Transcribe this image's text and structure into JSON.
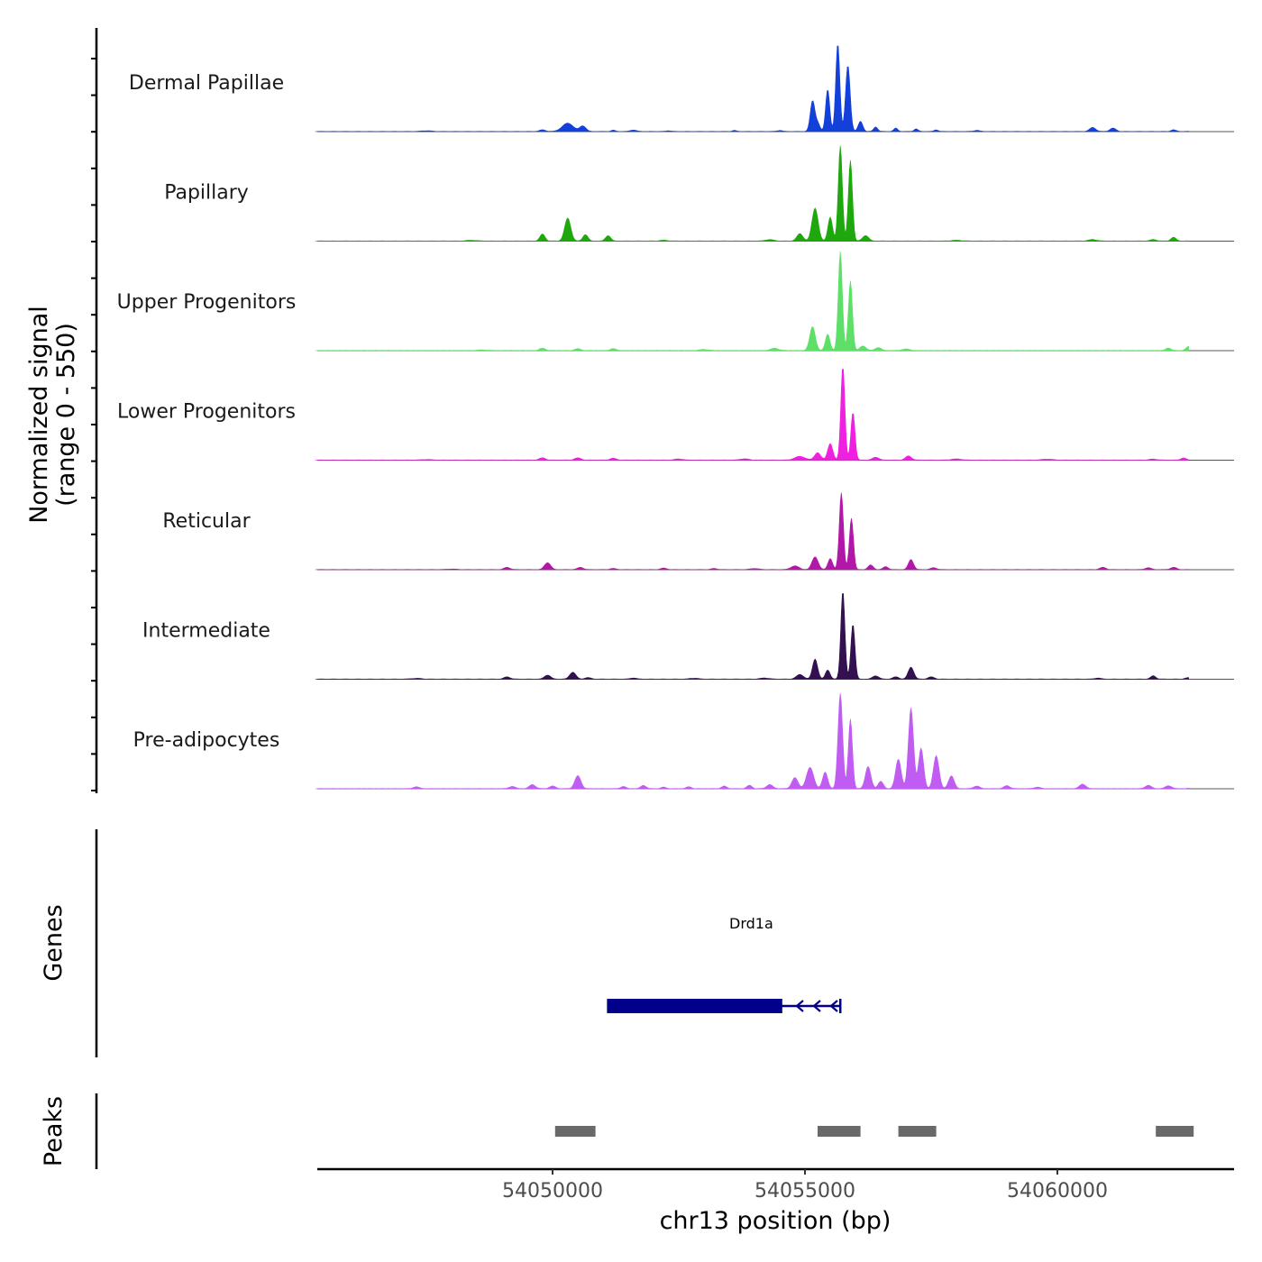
{
  "chart_data": {
    "type": "area",
    "title": "",
    "ylabel_line1": "Normalized signal",
    "ylabel_line2": "(range 0 - 550)",
    "y_range": [
      0,
      550
    ],
    "xlabel": "chr13 position (bp)",
    "xlim": [
      54045300,
      54063600
    ],
    "xticks": [
      54050000,
      54055000,
      54060000
    ],
    "xtick_labels": [
      "54050000",
      "54055000",
      "54060000"
    ],
    "genes_label": "Genes",
    "peaks_label": "Peaks",
    "series": [
      {
        "name": "Dermal Papillae",
        "color": "#1240d8",
        "peaks": [
          [
            54047500,
            4,
            100
          ],
          [
            54049800,
            9,
            60
          ],
          [
            54050300,
            45,
            110
          ],
          [
            54050600,
            30,
            60
          ],
          [
            54051200,
            7,
            40
          ],
          [
            54051600,
            8,
            60
          ],
          [
            54052300,
            4,
            50
          ],
          [
            54053600,
            6,
            40
          ],
          [
            54054500,
            6,
            50
          ],
          [
            54055150,
            165,
            45
          ],
          [
            54055250,
            45,
            45
          ],
          [
            54055450,
            230,
            40
          ],
          [
            54055650,
            480,
            40
          ],
          [
            54055850,
            360,
            45
          ],
          [
            54056100,
            55,
            45
          ],
          [
            54056400,
            25,
            40
          ],
          [
            54056800,
            18,
            40
          ],
          [
            54057200,
            14,
            40
          ],
          [
            54057600,
            9,
            40
          ],
          [
            54058400,
            6,
            60
          ],
          [
            54060700,
            22,
            60
          ],
          [
            54061100,
            18,
            60
          ],
          [
            54062300,
            9,
            50
          ],
          [
            54062700,
            5,
            50
          ]
        ]
      },
      {
        "name": "Papillary",
        "color": "#1fa80e",
        "peaks": [
          [
            54048400,
            4,
            100
          ],
          [
            54049800,
            38,
            50
          ],
          [
            54050300,
            125,
            60
          ],
          [
            54050650,
            35,
            50
          ],
          [
            54051100,
            30,
            50
          ],
          [
            54052200,
            4,
            80
          ],
          [
            54054300,
            8,
            80
          ],
          [
            54054900,
            40,
            60
          ],
          [
            54055200,
            180,
            60
          ],
          [
            54055500,
            130,
            45
          ],
          [
            54055700,
            520,
            40
          ],
          [
            54055900,
            440,
            40
          ],
          [
            54056200,
            30,
            60
          ],
          [
            54058000,
            4,
            100
          ],
          [
            54060700,
            8,
            80
          ],
          [
            54061900,
            8,
            60
          ],
          [
            54062300,
            20,
            50
          ]
        ]
      },
      {
        "name": "Upper Progenitors",
        "color": "#5ee068",
        "peaks": [
          [
            54048600,
            3,
            100
          ],
          [
            54049800,
            12,
            60
          ],
          [
            54050500,
            10,
            60
          ],
          [
            54051200,
            10,
            60
          ],
          [
            54053000,
            6,
            80
          ],
          [
            54054400,
            12,
            80
          ],
          [
            54055150,
            130,
            55
          ],
          [
            54055450,
            90,
            45
          ],
          [
            54055700,
            540,
            40
          ],
          [
            54055900,
            380,
            40
          ],
          [
            54056150,
            25,
            60
          ],
          [
            54056450,
            16,
            60
          ],
          [
            54057000,
            8,
            80
          ],
          [
            54062200,
            14,
            50
          ],
          [
            54062600,
            22,
            50
          ]
        ]
      },
      {
        "name": "Lower Progenitors",
        "color": "#f020e0",
        "peaks": [
          [
            54047500,
            3,
            100
          ],
          [
            54049800,
            12,
            60
          ],
          [
            54050500,
            12,
            60
          ],
          [
            54051200,
            10,
            60
          ],
          [
            54052500,
            6,
            80
          ],
          [
            54053800,
            7,
            80
          ],
          [
            54054900,
            20,
            100
          ],
          [
            54055250,
            40,
            60
          ],
          [
            54055500,
            90,
            50
          ],
          [
            54055750,
            510,
            40
          ],
          [
            54055950,
            260,
            40
          ],
          [
            54056400,
            16,
            60
          ],
          [
            54057050,
            22,
            60
          ],
          [
            54058000,
            6,
            100
          ],
          [
            54059800,
            5,
            100
          ],
          [
            54061900,
            5,
            80
          ],
          [
            54062500,
            12,
            50
          ]
        ]
      },
      {
        "name": "Reticular",
        "color": "#b218a8",
        "peaks": [
          [
            54048000,
            3,
            100
          ],
          [
            54049100,
            12,
            60
          ],
          [
            54049900,
            38,
            60
          ],
          [
            54050550,
            12,
            60
          ],
          [
            54051200,
            6,
            60
          ],
          [
            54052200,
            8,
            60
          ],
          [
            54053200,
            6,
            60
          ],
          [
            54054000,
            6,
            80
          ],
          [
            54054800,
            20,
            80
          ],
          [
            54055200,
            70,
            60
          ],
          [
            54055500,
            60,
            45
          ],
          [
            54055720,
            420,
            40
          ],
          [
            54055920,
            280,
            40
          ],
          [
            54056300,
            25,
            50
          ],
          [
            54056600,
            16,
            50
          ],
          [
            54057100,
            55,
            50
          ],
          [
            54057550,
            10,
            60
          ],
          [
            54060900,
            12,
            60
          ],
          [
            54061800,
            10,
            60
          ],
          [
            54062300,
            12,
            60
          ]
        ]
      },
      {
        "name": "Intermediate",
        "color": "#33104f",
        "peaks": [
          [
            54047300,
            4,
            100
          ],
          [
            54049100,
            12,
            60
          ],
          [
            54049900,
            22,
            60
          ],
          [
            54050400,
            38,
            60
          ],
          [
            54050700,
            8,
            60
          ],
          [
            54051600,
            6,
            60
          ],
          [
            54052800,
            5,
            80
          ],
          [
            54054200,
            6,
            80
          ],
          [
            54054900,
            25,
            70
          ],
          [
            54055200,
            110,
            50
          ],
          [
            54055450,
            50,
            45
          ],
          [
            54055750,
            480,
            40
          ],
          [
            54055950,
            300,
            40
          ],
          [
            54056400,
            18,
            60
          ],
          [
            54056800,
            12,
            60
          ],
          [
            54057100,
            65,
            55
          ],
          [
            54057500,
            12,
            60
          ],
          [
            54060800,
            6,
            60
          ],
          [
            54061900,
            18,
            50
          ],
          [
            54062600,
            8,
            60
          ]
        ]
      },
      {
        "name": "Pre-adipocytes",
        "color": "#c15cf2",
        "peaks": [
          [
            54047300,
            10,
            60
          ],
          [
            54049200,
            12,
            60
          ],
          [
            54049600,
            22,
            60
          ],
          [
            54050000,
            14,
            60
          ],
          [
            54050500,
            70,
            60
          ],
          [
            54051400,
            12,
            50
          ],
          [
            54051800,
            18,
            50
          ],
          [
            54052200,
            8,
            50
          ],
          [
            54052700,
            10,
            50
          ],
          [
            54053400,
            14,
            50
          ],
          [
            54053900,
            18,
            50
          ],
          [
            54054300,
            22,
            60
          ],
          [
            54054800,
            60,
            60
          ],
          [
            54055100,
            115,
            70
          ],
          [
            54055400,
            90,
            50
          ],
          [
            54055700,
            520,
            45
          ],
          [
            54055900,
            380,
            40
          ],
          [
            54056250,
            120,
            55
          ],
          [
            54056500,
            40,
            50
          ],
          [
            54056850,
            160,
            55
          ],
          [
            54057100,
            440,
            50
          ],
          [
            54057300,
            220,
            50
          ],
          [
            54057600,
            180,
            55
          ],
          [
            54057900,
            70,
            55
          ],
          [
            54058400,
            14,
            60
          ],
          [
            54059000,
            16,
            60
          ],
          [
            54059600,
            8,
            60
          ],
          [
            54060500,
            25,
            60
          ],
          [
            54061800,
            18,
            60
          ],
          [
            54062200,
            16,
            60
          ],
          [
            54062700,
            10,
            60
          ]
        ]
      }
    ],
    "genes": [
      {
        "name": "Drd1a",
        "strand": "-",
        "start": 54051100,
        "end": 54055700,
        "cds_start": 54051100,
        "cds_end": 54054550,
        "color": "#00008b"
      }
    ],
    "peaks": [
      {
        "start": 54050050,
        "end": 54050850
      },
      {
        "start": 54055250,
        "end": 54056100
      },
      {
        "start": 54056850,
        "end": 54057600
      },
      {
        "start": 54061950,
        "end": 54062700
      }
    ],
    "peak_color": "#696969"
  }
}
